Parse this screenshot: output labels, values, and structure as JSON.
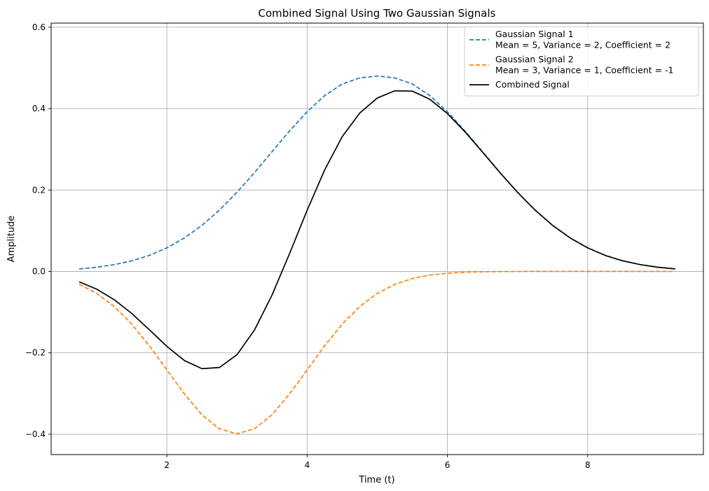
{
  "chart_data": {
    "type": "line",
    "title": "Combined Signal Using Two Gaussian Signals",
    "xlabel": "Time (t)",
    "ylabel": "Amplitude",
    "xlim": [
      0.35,
      9.65
    ],
    "ylim": [
      -0.45,
      0.61
    ],
    "xticks": [
      2,
      4,
      6,
      8
    ],
    "xtick_labels": [
      "2",
      "4",
      "6",
      "8"
    ],
    "yticks": [
      -0.4,
      -0.2,
      0.0,
      0.2,
      0.4,
      0.6
    ],
    "ytick_labels": [
      "−0.4",
      "−0.2",
      "0.0",
      "0.2",
      "0.4",
      "0.6"
    ],
    "grid": true,
    "legend_position": "top-right",
    "series": [
      {
        "name_lines": [
          "Gaussian Signal 1",
          "Mean = 5, Variance = 2, Coefficient = 2"
        ],
        "color": "#1f77b4",
        "dash": "dashed",
        "x": [
          0.75,
          1.0,
          1.25,
          1.5,
          1.75,
          2.0,
          2.25,
          2.5,
          2.75,
          3.0,
          3.25,
          3.5,
          3.75,
          4.0,
          4.25,
          4.5,
          4.75,
          5.0,
          5.25,
          5.5,
          5.75,
          6.0,
          6.25,
          6.5,
          6.75,
          7.0,
          7.25,
          7.5,
          7.75,
          8.0,
          8.25,
          8.5,
          8.75,
          9.0,
          9.25
        ],
        "y": [
          0.0061,
          0.0103,
          0.0167,
          0.026,
          0.0393,
          0.0578,
          0.0822,
          0.1131,
          0.1507,
          0.1944,
          0.2429,
          0.2942,
          0.3451,
          0.3922,
          0.4319,
          0.4605,
          0.4754,
          0.48,
          0.4754,
          0.4605,
          0.4319,
          0.3922,
          0.3451,
          0.2942,
          0.2429,
          0.1944,
          0.1507,
          0.1131,
          0.0822,
          0.0578,
          0.0393,
          0.026,
          0.0167,
          0.0103,
          0.0061
        ]
      },
      {
        "name_lines": [
          "Gaussian Signal 2",
          "Mean = 3, Variance = 1, Coefficient = -1"
        ],
        "color": "#ff7f0e",
        "dash": "dashed",
        "x": [
          0.75,
          1.0,
          1.25,
          1.5,
          1.75,
          2.0,
          2.25,
          2.5,
          2.75,
          3.0,
          3.25,
          3.5,
          3.75,
          4.0,
          4.25,
          4.5,
          4.75,
          5.0,
          5.25,
          5.5,
          5.75,
          6.0,
          6.25,
          6.5,
          6.75,
          7.0,
          7.25,
          7.5,
          7.75,
          8.0,
          8.25,
          8.5,
          8.75,
          9.0,
          9.25
        ],
        "y": [
          -0.0317,
          -0.054,
          -0.0863,
          -0.1295,
          -0.1826,
          -0.242,
          -0.3011,
          -0.3521,
          -0.3867,
          -0.3989,
          -0.3867,
          -0.3521,
          -0.3011,
          -0.242,
          -0.1826,
          -0.1295,
          -0.0863,
          -0.054,
          -0.0317,
          -0.0175,
          -0.0091,
          -0.0044,
          -0.002,
          -0.0009,
          -0.0004,
          -0.0001,
          0.0,
          0.0,
          0.0,
          0.0,
          0.0,
          0.0,
          0.0,
          0.0,
          0.0
        ]
      },
      {
        "name_lines": [
          "Combined Signal"
        ],
        "color": "#000000",
        "dash": "solid",
        "x": [
          0.75,
          1.0,
          1.25,
          1.5,
          1.75,
          2.0,
          2.25,
          2.5,
          2.75,
          3.0,
          3.25,
          3.5,
          3.75,
          4.0,
          4.25,
          4.5,
          4.75,
          5.0,
          5.25,
          5.5,
          5.75,
          6.0,
          6.25,
          6.5,
          6.75,
          7.0,
          7.25,
          7.5,
          7.75,
          8.0,
          8.25,
          8.5,
          8.75,
          9.0,
          9.25
        ],
        "y": [
          -0.0256,
          -0.0437,
          -0.0696,
          -0.1035,
          -0.1433,
          -0.1842,
          -0.2189,
          -0.239,
          -0.236,
          -0.2045,
          -0.1438,
          -0.0579,
          0.044,
          0.1502,
          0.2493,
          0.331,
          0.3891,
          0.426,
          0.4437,
          0.443,
          0.4228,
          0.3878,
          0.3431,
          0.2933,
          0.2425,
          0.1943,
          0.1507,
          0.1131,
          0.0822,
          0.0578,
          0.0393,
          0.026,
          0.0167,
          0.0103,
          0.0061
        ]
      }
    ]
  }
}
